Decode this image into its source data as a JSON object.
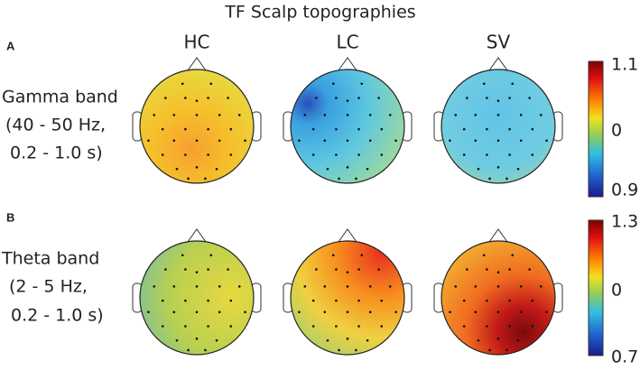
{
  "title": "TF Scalp topographies",
  "columns": [
    "HC",
    "LC",
    "SV"
  ],
  "panels": [
    {
      "label": "A",
      "row_label": [
        "Gamma band",
        "(40 - 50 Hz,",
        "0.2 - 1.0 s)"
      ],
      "colorbar_labels": [
        "1.1",
        "0",
        "0.9"
      ]
    },
    {
      "label": "B",
      "row_label": [
        "Theta band",
        "(2 - 5 Hz,",
        "0.2 - 1.0 s)"
      ],
      "colorbar_labels": [
        "1.3",
        "0",
        "0.7"
      ]
    }
  ]
}
